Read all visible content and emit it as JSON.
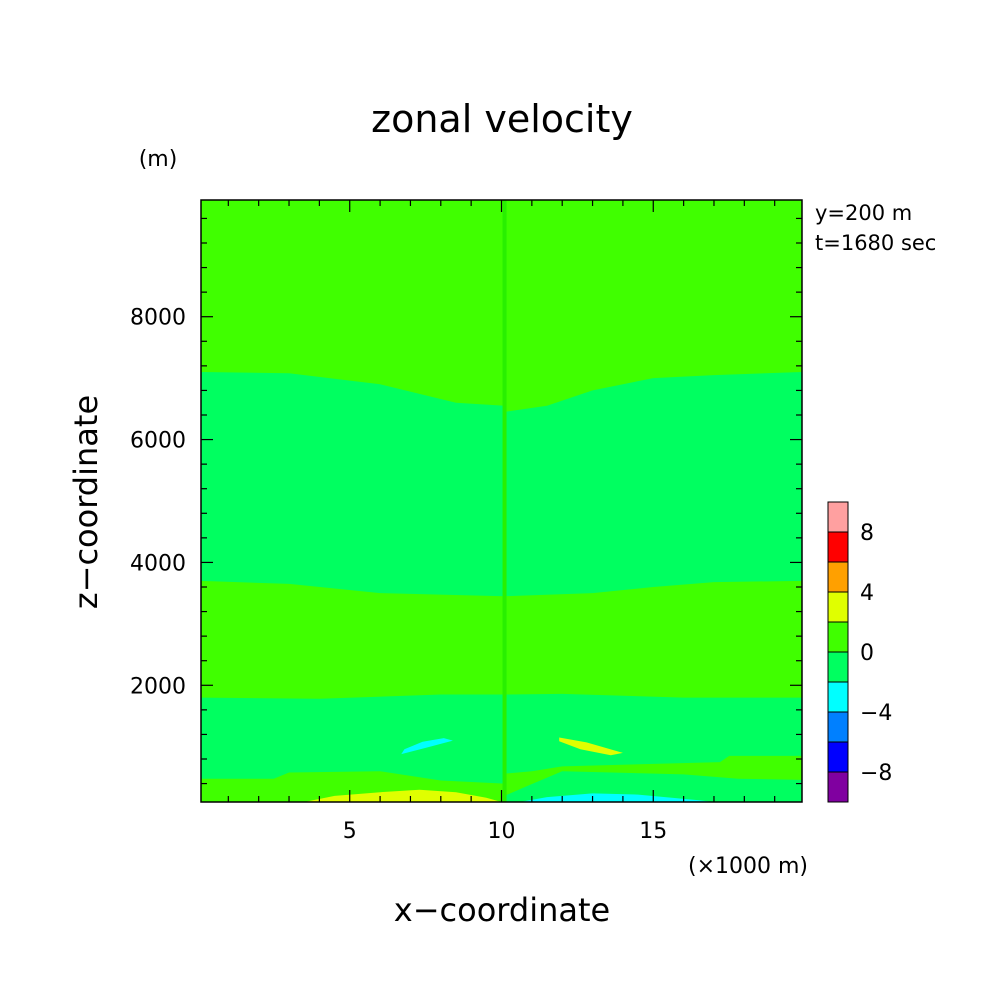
{
  "chart_data": {
    "type": "heatmap",
    "title": "zonal velocity",
    "xlabel": "x−coordinate",
    "ylabel": "z−coordinate",
    "x_unit": "(×1000 m)",
    "y_unit": "(m)",
    "annotations": [
      "y=200 m",
      "t=1680 sec"
    ],
    "xlim": [
      0.1,
      19.9
    ],
    "ylim": [
      100,
      9900
    ],
    "x_ticks": [
      5,
      10,
      15
    ],
    "x_tick_labels": [
      "5",
      "10",
      "15"
    ],
    "y_ticks": [
      2000,
      4000,
      6000,
      8000
    ],
    "y_tick_labels": [
      "2000",
      "4000",
      "6000",
      "8000"
    ],
    "colorbar": {
      "levels": [
        -10,
        -8,
        -6,
        -4,
        -2,
        0,
        2,
        4,
        6,
        8,
        10
      ],
      "tick_values": [
        -8,
        -4,
        0,
        4,
        8
      ],
      "tick_labels": [
        "−8",
        "−4",
        "0",
        "4",
        "8"
      ],
      "colors": [
        "#8000a0",
        "#0000ff",
        "#0080ff",
        "#00ffff",
        "#00ff60",
        "#40ff00",
        "#e0ff00",
        "#ffa000",
        "#ff0000",
        "#ffa0a0"
      ]
    },
    "background_color": "#40ff00",
    "regions": [
      {
        "level": "-2..0",
        "color": "#00ff60",
        "points": [
          [
            0.1,
            7100
          ],
          [
            3,
            7080
          ],
          [
            6,
            6900
          ],
          [
            8.5,
            6600
          ],
          [
            10.1,
            6550
          ],
          [
            10.1,
            3450
          ],
          [
            6,
            3500
          ],
          [
            3,
            3650
          ],
          [
            0.1,
            3700
          ]
        ]
      },
      {
        "level": "-2..0",
        "color": "#00ff60",
        "points": [
          [
            10.1,
            6450
          ],
          [
            11.5,
            6550
          ],
          [
            13,
            6800
          ],
          [
            15,
            7000
          ],
          [
            17,
            7050
          ],
          [
            19.9,
            7100
          ],
          [
            19.9,
            3700
          ],
          [
            17,
            3680
          ],
          [
            15,
            3600
          ],
          [
            13,
            3500
          ],
          [
            10.1,
            3450
          ]
        ]
      },
      {
        "level": "-2..0",
        "color": "#00ff60",
        "points": [
          [
            0.1,
            1800
          ],
          [
            4,
            1780
          ],
          [
            8,
            1850
          ],
          [
            10.1,
            1850
          ],
          [
            10.1,
            400
          ],
          [
            8,
            450
          ],
          [
            6,
            600
          ],
          [
            3,
            580
          ],
          [
            2.5,
            480
          ],
          [
            0.1,
            480
          ]
        ]
      },
      {
        "level": "-2..0",
        "color": "#00ff60",
        "points": [
          [
            10.1,
            1850
          ],
          [
            12,
            1860
          ],
          [
            16,
            1800
          ],
          [
            19.9,
            1800
          ],
          [
            19.9,
            850
          ],
          [
            17.5,
            850
          ],
          [
            17.2,
            750
          ],
          [
            12,
            680
          ],
          [
            11,
            600
          ],
          [
            10.1,
            560
          ]
        ]
      },
      {
        "level": "-2..0",
        "color": "#00ff60",
        "points": [
          [
            10.1,
            100
          ],
          [
            10.1,
            200
          ],
          [
            10.8,
            350
          ],
          [
            12,
            600
          ],
          [
            16,
            550
          ],
          [
            17.8,
            480
          ],
          [
            19.9,
            460
          ],
          [
            19.9,
            100
          ]
        ]
      },
      {
        "level": "2..4",
        "color": "#e0ff00",
        "points": [
          [
            3.5,
            100
          ],
          [
            4.5,
            200
          ],
          [
            6,
            260
          ],
          [
            7.3,
            300
          ],
          [
            8.5,
            260
          ],
          [
            9.5,
            170
          ],
          [
            10,
            100
          ]
        ]
      },
      {
        "level": "-4..-2",
        "color": "#00ffff",
        "points": [
          [
            10.6,
            100
          ],
          [
            11.5,
            180
          ],
          [
            13,
            240
          ],
          [
            14.5,
            220
          ],
          [
            16.5,
            130
          ],
          [
            17,
            100
          ]
        ]
      },
      {
        "level": "-4..-2",
        "color": "#00ffff",
        "points": [
          [
            6.7,
            880
          ],
          [
            7.5,
            980
          ],
          [
            8.4,
            1100
          ],
          [
            8.1,
            1140
          ],
          [
            7.4,
            1080
          ],
          [
            6.8,
            960
          ]
        ]
      },
      {
        "level": "2..4",
        "color": "#e0ff00",
        "points": [
          [
            11.9,
            1150
          ],
          [
            12.8,
            1070
          ],
          [
            14.0,
            900
          ],
          [
            13.6,
            860
          ],
          [
            12.6,
            960
          ],
          [
            11.9,
            1090
          ]
        ]
      }
    ]
  }
}
